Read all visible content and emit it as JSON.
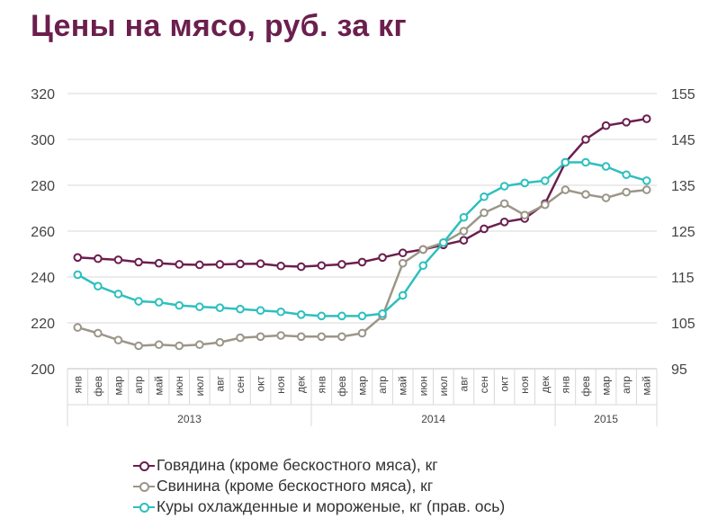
{
  "title": "Цены на мясо, руб. за кг",
  "chart_data": {
    "type": "line",
    "categories": [
      "янв",
      "фев",
      "мар",
      "апр",
      "май",
      "июн",
      "июл",
      "авг",
      "сен",
      "окт",
      "ноя",
      "дек",
      "янв",
      "фев",
      "мар",
      "апр",
      "май",
      "июн",
      "июл",
      "авг",
      "сен",
      "окт",
      "ноя",
      "дек",
      "янв",
      "фев",
      "мар",
      "апр",
      "май"
    ],
    "years": [
      {
        "label": "2013",
        "start": 0,
        "count": 12
      },
      {
        "label": "2014",
        "start": 12,
        "count": 12
      },
      {
        "label": "2015",
        "start": 24,
        "count": 5
      }
    ],
    "y_left": {
      "min": 200,
      "max": 320,
      "ticks": [
        200,
        220,
        240,
        260,
        280,
        300,
        320
      ]
    },
    "y_right": {
      "min": 95,
      "max": 155,
      "ticks": [
        95,
        105,
        115,
        125,
        135,
        145,
        155
      ]
    },
    "grid": true,
    "legend_position": "bottom",
    "series": [
      {
        "name": "Говядина (кроме бескостного мяса), кг",
        "axis": "left",
        "color": "#6b1f4e",
        "values": [
          248.5,
          248,
          247.5,
          246.5,
          246,
          245.5,
          245.3,
          245.5,
          245.7,
          245.8,
          244.8,
          244.5,
          245,
          245.5,
          246.5,
          248.5,
          250.5,
          252,
          254,
          256,
          261,
          264,
          265.5,
          272,
          290,
          300,
          306,
          307.5,
          309
        ]
      },
      {
        "name": "Свинина (кроме бескостного мяса), кг",
        "axis": "left",
        "color": "#9c9688",
        "values": [
          218,
          215.5,
          212.5,
          210,
          210.5,
          210,
          210.5,
          211.5,
          213.5,
          214,
          214.5,
          214,
          214,
          214,
          215.5,
          223,
          246,
          252,
          255,
          260,
          268,
          272,
          267,
          271.5,
          278,
          276,
          274.5,
          277,
          278
        ]
      },
      {
        "name": "Куры охлажденные и мороженые, кг (прав. ось)",
        "axis": "right",
        "color": "#2fbfbf",
        "values": [
          115.5,
          113,
          111.3,
          109.7,
          109.5,
          108.8,
          108.5,
          108.3,
          108,
          107.7,
          107.4,
          106.8,
          106.5,
          106.5,
          106.5,
          107,
          111,
          117.5,
          122.5,
          128,
          132.5,
          134.8,
          135.5,
          136,
          140,
          140,
          139.1,
          137.3,
          136
        ]
      }
    ]
  }
}
